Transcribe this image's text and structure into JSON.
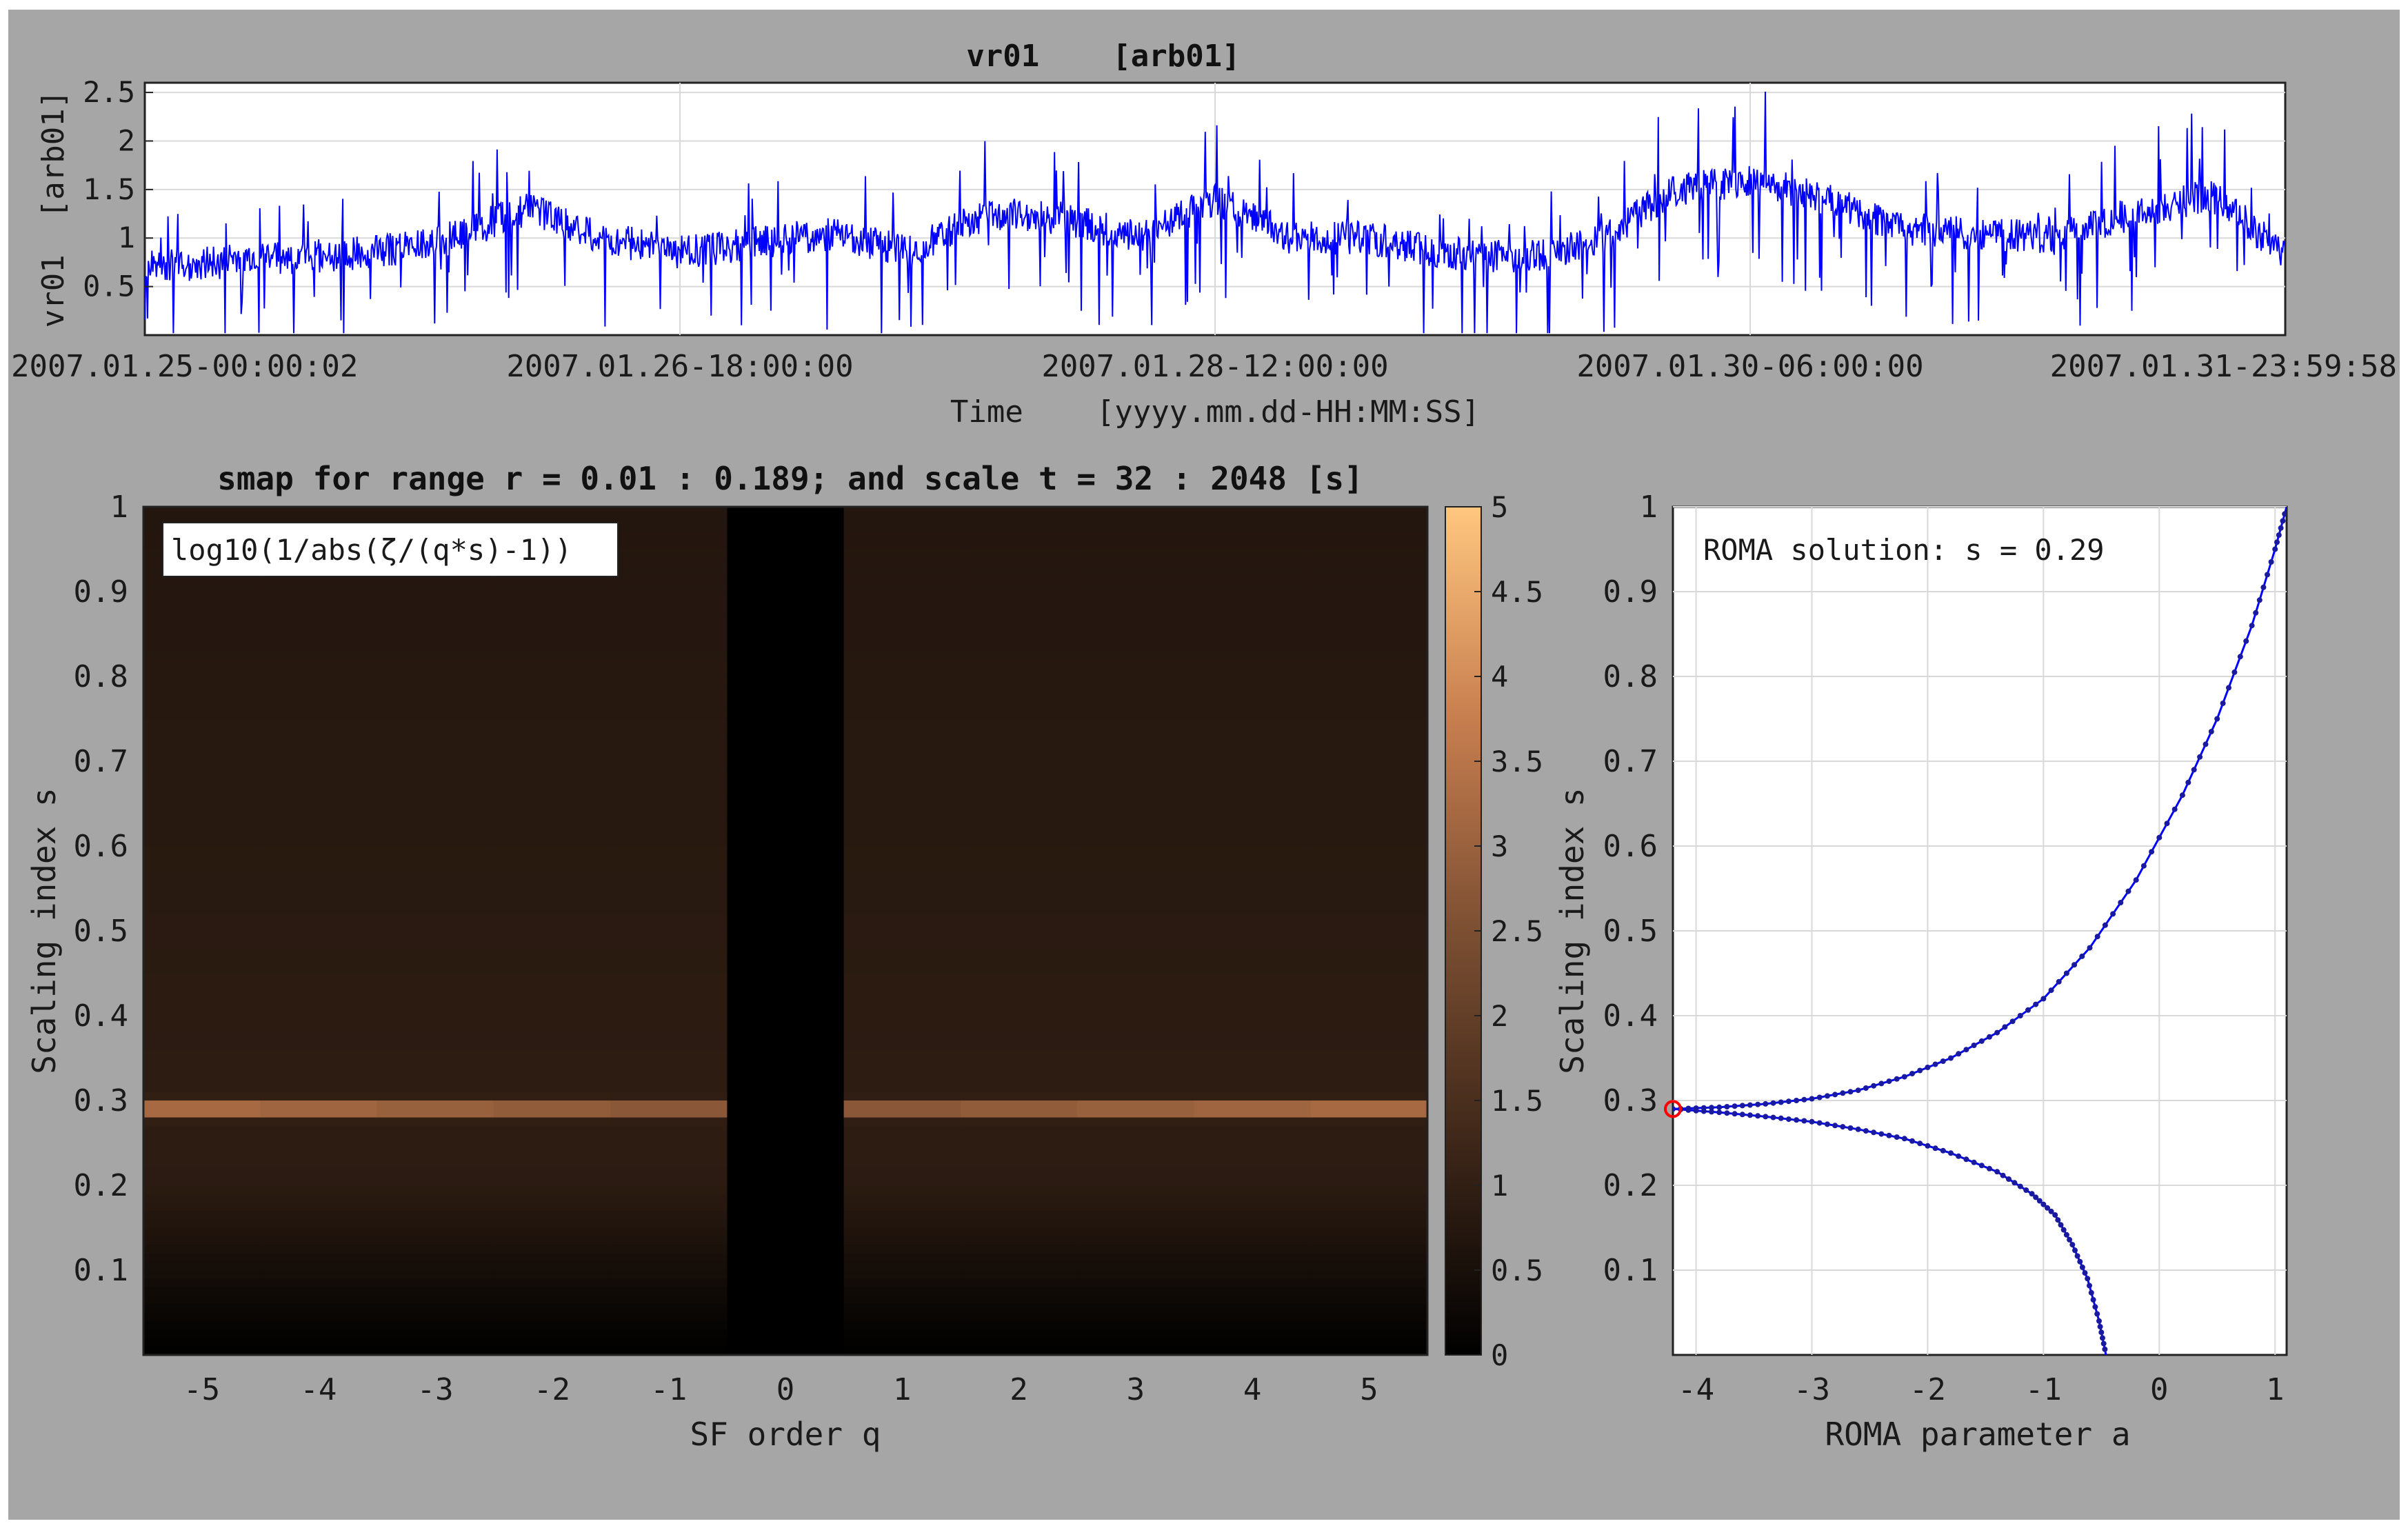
{
  "colors": {
    "figure_background": "#a6a6a6",
    "axes_background": "#ffffff",
    "series_line": "#0000ff",
    "grid": "#d9d9d9",
    "marker_highlight": "#ff0000",
    "colormap": "copper"
  },
  "chart_data": [
    {
      "id": "timeseries",
      "type": "line",
      "title": "vr01    [arb01]",
      "xlabel": "Time    [yyyy.mm.dd-HH:MM:SS]",
      "ylabel": "vr01  [arb01]",
      "xlim": [
        "2007.01.25-00:00:02",
        "2007.01.31-23:59:58"
      ],
      "ylim": [
        0,
        2.6
      ],
      "xticklabels": [
        "2007.01.25-00:00:02",
        "2007.01.26-18:00:00",
        "2007.01.28-12:00:00",
        "2007.01.30-06:00:00",
        "2007.01.31-23:59:58"
      ],
      "yticks": [
        0.5,
        1,
        1.5,
        2,
        2.5
      ],
      "yticklabels": [
        "0.5",
        "1",
        "1.5",
        "2",
        "2.5"
      ],
      "grid": true,
      "series": [
        {
          "x": [
            "2007.01.25-00:00:02",
            "2007.01.25-06:00:00",
            "2007.01.25-12:00:00",
            "2007.01.25-18:00:00",
            "2007.01.26-00:00:00",
            "2007.01.26-06:00:00",
            "2007.01.26-12:00:00",
            "2007.01.26-18:00:00",
            "2007.01.27-00:00:00",
            "2007.01.27-06:00:00",
            "2007.01.27-12:00:00",
            "2007.01.27-18:00:00",
            "2007.01.28-00:00:00",
            "2007.01.28-06:00:00",
            "2007.01.28-12:00:00",
            "2007.01.28-18:00:00",
            "2007.01.29-00:00:00",
            "2007.01.29-06:00:00",
            "2007.01.29-12:00:00",
            "2007.01.29-18:00:00",
            "2007.01.30-00:00:00",
            "2007.01.30-06:00:00",
            "2007.01.30-12:00:00",
            "2007.01.30-18:00:00",
            "2007.01.31-00:00:00",
            "2007.01.31-06:00:00",
            "2007.01.31-12:00:00",
            "2007.01.31-18:00:00",
            "2007.01.31-23:59:58"
          ],
          "y": [
            0.7,
            0.75,
            0.8,
            0.85,
            1.0,
            1.3,
            1.0,
            0.85,
            0.95,
            1.05,
            0.85,
            1.25,
            1.2,
            1.0,
            1.4,
            1.0,
            1.0,
            0.85,
            0.8,
            0.95,
            1.5,
            1.6,
            1.4,
            1.1,
            1.05,
            1.0,
            1.25,
            1.45,
            0.85
          ]
        }
      ]
    },
    {
      "id": "smap",
      "type": "heatmap",
      "title": "smap for range r = 0.01 : 0.189; and scale t = 32 : 2048 [s]",
      "annotation": "log10(1/abs(ζ/(q*s)-1))",
      "xlabel": "SF order q",
      "ylabel": "Scaling index s",
      "x": [
        -5,
        -4,
        -3,
        -2,
        -1,
        0,
        1,
        2,
        3,
        4,
        5
      ],
      "xticklabels": [
        "-5",
        "-4",
        "-3",
        "-2",
        "-1",
        "0",
        "1",
        "2",
        "3",
        "4",
        "5"
      ],
      "ylim": [
        0,
        1
      ],
      "yticks": [
        0.1,
        0.2,
        0.3,
        0.4,
        0.5,
        0.6,
        0.7,
        0.8,
        0.9,
        1
      ],
      "yticklabels": [
        "0.1",
        "0.2",
        "0.3",
        "0.4",
        "0.5",
        "0.6",
        "0.7",
        "0.8",
        "0.9",
        "1"
      ],
      "peak_s": 0.29,
      "column_intensity": [
        1.0,
        0.95,
        0.9,
        0.85,
        0.8,
        0.0,
        0.8,
        0.85,
        0.9,
        0.95,
        1.0
      ],
      "colorbar": {
        "limits": [
          0,
          5
        ],
        "ticks": [
          0,
          0.5,
          1,
          1.5,
          2,
          2.5,
          3,
          3.5,
          4,
          4.5,
          5
        ],
        "ticklabels": [
          "0",
          "0.5",
          "1",
          "1.5",
          "2",
          "2.5",
          "3",
          "3.5",
          "4",
          "4.5",
          "5"
        ]
      }
    },
    {
      "id": "roma",
      "type": "line",
      "annotation": "ROMA solution: s = 0.29",
      "xlabel": "ROMA parameter a",
      "ylabel": "Scaling index s",
      "xlim": [
        -4.2,
        1.1
      ],
      "ylim": [
        0,
        1
      ],
      "xticks": [
        -4,
        -3,
        -2,
        -1,
        0,
        1
      ],
      "xticklabels": [
        "-4",
        "-3",
        "-2",
        "-1",
        "0",
        "1"
      ],
      "yticks": [
        0.1,
        0.2,
        0.3,
        0.4,
        0.5,
        0.6,
        0.7,
        0.8,
        0.9,
        1
      ],
      "yticklabels": [
        "0.1",
        "0.2",
        "0.3",
        "0.4",
        "0.5",
        "0.6",
        "0.7",
        "0.8",
        "0.9",
        "1"
      ],
      "grid": true,
      "solution": {
        "a": -4.2,
        "s": 0.29
      },
      "series": [
        {
          "a": [
            -4.2,
            -3.8,
            -3.4,
            -3.0,
            -2.6,
            -2.2,
            -1.8,
            -1.4,
            -1.0,
            -0.6,
            -0.2,
            0.2,
            0.5,
            0.8,
            1.0,
            1.1
          ],
          "s": [
            0.29,
            0.292,
            0.296,
            0.302,
            0.312,
            0.328,
            0.35,
            0.38,
            0.42,
            0.48,
            0.56,
            0.66,
            0.75,
            0.86,
            0.95,
            1.0
          ]
        },
        {
          "a": [
            -4.2,
            -3.8,
            -3.4,
            -3.0,
            -2.6,
            -2.2,
            -1.8,
            -1.4,
            -1.1,
            -0.9,
            -0.75,
            -0.62,
            -0.52,
            -0.46
          ],
          "s": [
            0.29,
            0.286,
            0.281,
            0.275,
            0.266,
            0.255,
            0.238,
            0.216,
            0.19,
            0.165,
            0.13,
            0.09,
            0.04,
            0.0
          ]
        }
      ]
    }
  ]
}
